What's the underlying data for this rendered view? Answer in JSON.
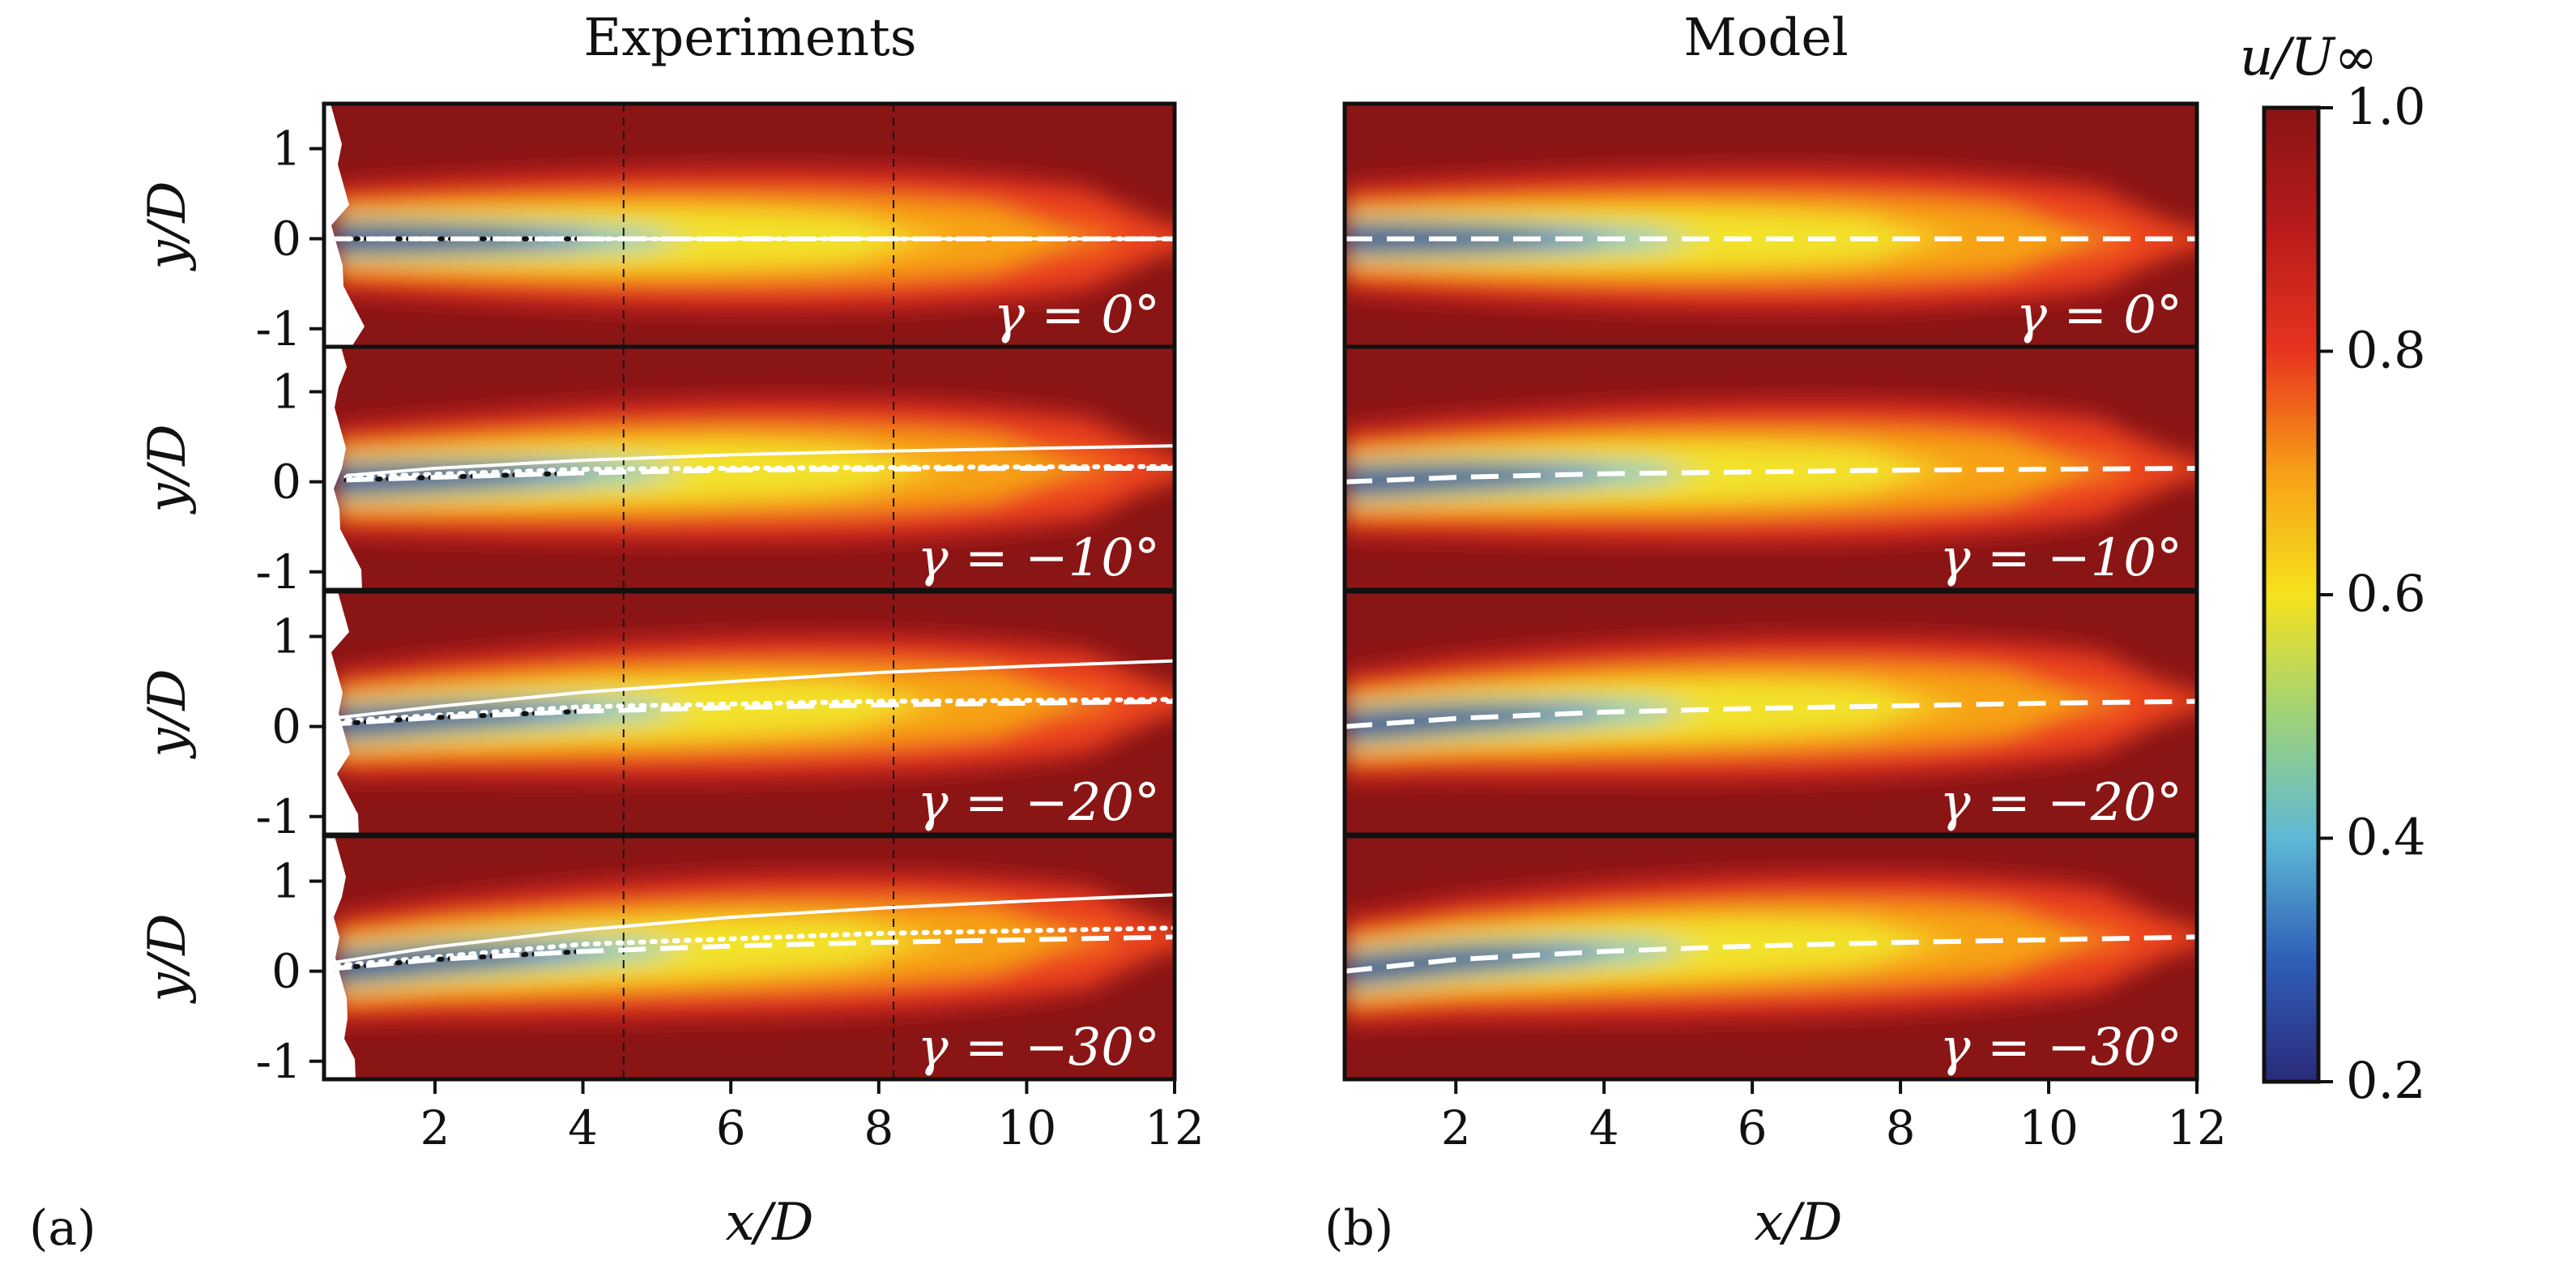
{
  "column_titles": {
    "left": "Experiments",
    "right": "Model"
  },
  "panel_labels": {
    "left": "(a)",
    "right": "(b)"
  },
  "colorbar": {
    "label": "u/U∞",
    "ticks": [
      "0.2",
      "0.4",
      "0.6",
      "0.8",
      "1.0"
    ],
    "colors": [
      "#2a2a7a",
      "#2f5fb8",
      "#5fb9d6",
      "#9ed27a",
      "#f6e21c",
      "#f7a017",
      "#e8341e",
      "#b81b1b",
      "#8a1414"
    ]
  },
  "colors": {
    "background": "#8a1515",
    "wake_center": "#243080",
    "frame": "#111111",
    "overlay_lines": "#ffffff"
  },
  "chart_data": [
    {
      "type": "heatmap",
      "panel": "a",
      "column": "Experiments",
      "xlabel": "x/D",
      "ylabel": "y/D",
      "xlim": [
        0.5,
        12
      ],
      "ylim": [
        -1.2,
        1.5
      ],
      "x_ticks": [
        "2",
        "4",
        "6",
        "8",
        "10",
        "12"
      ],
      "y_ticks": [
        "-1",
        "0",
        "1"
      ],
      "vertical_reference_lines_x": [
        4.55,
        8.2
      ],
      "rows": [
        {
          "gamma_label": "γ = 0°",
          "wake_center_y": [
            [
              0.5,
              0
            ],
            [
              2,
              0
            ],
            [
              4,
              0
            ],
            [
              6,
              0
            ],
            [
              8,
              0
            ],
            [
              10,
              0
            ],
            [
              12,
              0
            ]
          ],
          "solid_line_y": [
            [
              0.5,
              0
            ],
            [
              12,
              0
            ]
          ],
          "dotted_line_y": [
            [
              0.5,
              0
            ],
            [
              12,
              0
            ]
          ]
        },
        {
          "gamma_label": "γ = −10°",
          "wake_center_y": [
            [
              0.8,
              0.02
            ],
            [
              2,
              0.05
            ],
            [
              4,
              0.1
            ],
            [
              6,
              0.13
            ],
            [
              8,
              0.14
            ],
            [
              10,
              0.15
            ],
            [
              12,
              0.15
            ]
          ],
          "solid_line_y": [
            [
              0.8,
              0.07
            ],
            [
              2,
              0.15
            ],
            [
              4,
              0.24
            ],
            [
              6,
              0.3
            ],
            [
              8,
              0.34
            ],
            [
              10,
              0.37
            ],
            [
              12,
              0.4
            ]
          ],
          "dotted_line_y": [
            [
              0.8,
              0.05
            ],
            [
              4,
              0.14
            ],
            [
              8,
              0.16
            ],
            [
              12,
              0.17
            ]
          ]
        },
        {
          "gamma_label": "γ = −20°",
          "wake_center_y": [
            [
              0.5,
              0.02
            ],
            [
              2,
              0.1
            ],
            [
              4,
              0.17
            ],
            [
              6,
              0.21
            ],
            [
              8,
              0.24
            ],
            [
              10,
              0.26
            ],
            [
              12,
              0.28
            ]
          ],
          "solid_line_y": [
            [
              0.5,
              0.08
            ],
            [
              2,
              0.22
            ],
            [
              4,
              0.38
            ],
            [
              6,
              0.5
            ],
            [
              8,
              0.6
            ],
            [
              10,
              0.67
            ],
            [
              12,
              0.73
            ]
          ],
          "dotted_line_y": [
            [
              0.5,
              0.05
            ],
            [
              4,
              0.22
            ],
            [
              8,
              0.28
            ],
            [
              12,
              0.3
            ]
          ]
        },
        {
          "gamma_label": "γ = −30°",
          "wake_center_y": [
            [
              0.5,
              0.02
            ],
            [
              2,
              0.13
            ],
            [
              4,
              0.22
            ],
            [
              6,
              0.28
            ],
            [
              8,
              0.32
            ],
            [
              10,
              0.35
            ],
            [
              12,
              0.38
            ]
          ],
          "solid_line_y": [
            [
              0.5,
              0.08
            ],
            [
              2,
              0.27
            ],
            [
              4,
              0.46
            ],
            [
              6,
              0.6
            ],
            [
              8,
              0.7
            ],
            [
              10,
              0.78
            ],
            [
              12,
              0.85
            ]
          ],
          "dotted_line_y": [
            [
              0.5,
              0.05
            ],
            [
              4,
              0.3
            ],
            [
              8,
              0.42
            ],
            [
              12,
              0.48
            ]
          ]
        }
      ]
    },
    {
      "type": "heatmap",
      "panel": "b",
      "column": "Model",
      "xlabel": "x/D",
      "ylabel": "",
      "xlim": [
        0.5,
        12
      ],
      "ylim": [
        -1.2,
        1.5
      ],
      "x_ticks": [
        "2",
        "4",
        "6",
        "8",
        "10",
        "12"
      ],
      "y_ticks": [],
      "rows": [
        {
          "gamma_label": "γ = 0°",
          "wake_center_y": [
            [
              0.5,
              0
            ],
            [
              12,
              0
            ]
          ]
        },
        {
          "gamma_label": "γ = −10°",
          "wake_center_y": [
            [
              0.5,
              0.0
            ],
            [
              2,
              0.05
            ],
            [
              4,
              0.09
            ],
            [
              6,
              0.11
            ],
            [
              8,
              0.13
            ],
            [
              10,
              0.14
            ],
            [
              12,
              0.15
            ]
          ]
        },
        {
          "gamma_label": "γ = −20°",
          "wake_center_y": [
            [
              0.5,
              0.0
            ],
            [
              2,
              0.09
            ],
            [
              4,
              0.16
            ],
            [
              6,
              0.2
            ],
            [
              8,
              0.23
            ],
            [
              10,
              0.26
            ],
            [
              12,
              0.28
            ]
          ]
        },
        {
          "gamma_label": "γ = −30°",
          "wake_center_y": [
            [
              0.5,
              0.0
            ],
            [
              2,
              0.13
            ],
            [
              4,
              0.22
            ],
            [
              6,
              0.28
            ],
            [
              8,
              0.32
            ],
            [
              10,
              0.35
            ],
            [
              12,
              0.38
            ]
          ]
        }
      ]
    }
  ]
}
